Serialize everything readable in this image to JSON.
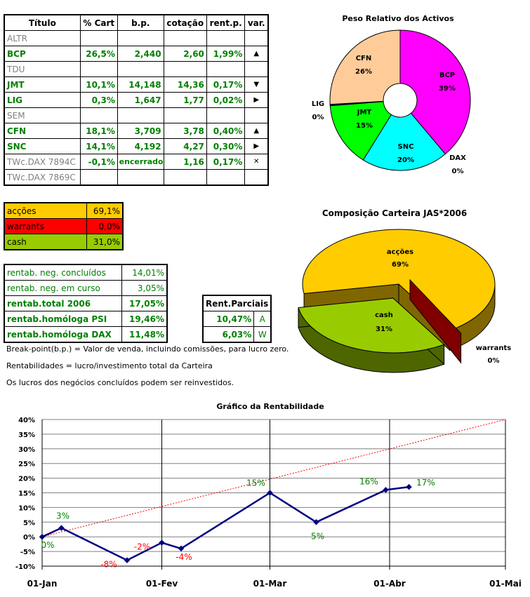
{
  "holdings": {
    "headers": [
      "Título",
      "% Cart",
      "b.p.",
      "cotação",
      "rent.p.",
      "var."
    ],
    "rows": [
      {
        "name": "ALTR",
        "active": false,
        "cart": "",
        "bp": "",
        "cot": "",
        "rent": "",
        "var": ""
      },
      {
        "name": "BCP",
        "active": true,
        "cart": "26,5%",
        "bp": "2,440",
        "cot": "2,60",
        "rent": "1,99%",
        "var": "up"
      },
      {
        "name": "TDU",
        "active": false,
        "cart": "",
        "bp": "",
        "cot": "",
        "rent": "",
        "var": ""
      },
      {
        "name": "JMT",
        "active": true,
        "cart": "10,1%",
        "bp": "14,148",
        "cot": "14,36",
        "rent": "0,17%",
        "var": "down"
      },
      {
        "name": "LIG",
        "active": true,
        "cart": "0,3%",
        "bp": "1,647",
        "cot": "1,77",
        "rent": "0,02%",
        "var": "right"
      },
      {
        "name": "SEM",
        "active": false,
        "cart": "",
        "bp": "",
        "cot": "",
        "rent": "",
        "var": ""
      },
      {
        "name": "CFN",
        "active": true,
        "cart": "18,1%",
        "bp": "3,709",
        "cot": "3,78",
        "rent": "0,40%",
        "var": "up"
      },
      {
        "name": "SNC",
        "active": true,
        "cart": "14,1%",
        "bp": "4,192",
        "cot": "4,27",
        "rent": "0,30%",
        "var": "right"
      },
      {
        "name": "TWc.DAX 7894C",
        "active": false,
        "cart": "-0,1%",
        "bp": "encerrado",
        "cot": "1,16",
        "rent": "0,17%",
        "var": "closed"
      },
      {
        "name": "TWc.DAX 7869C",
        "active": false,
        "cart": "",
        "bp": "",
        "cot": "",
        "rent": "",
        "var": ""
      }
    ],
    "var_icons": {
      "up": "▲",
      "down": "▼",
      "right": "▶",
      "closed": "✕"
    }
  },
  "allocation": [
    {
      "label": "acções",
      "value": "69,1%",
      "color": "#FFCC00"
    },
    {
      "label": "warrants",
      "value": "0,0%",
      "color": "#FF0000"
    },
    {
      "label": "cash",
      "value": "31,0%",
      "color": "#99CC00"
    }
  ],
  "returns": [
    {
      "label": "rentab. neg. concluídos",
      "value": "14,01%",
      "bold": false
    },
    {
      "label": "rentab. neg. em curso",
      "value": "3,05%",
      "bold": false
    },
    {
      "label": "rentab.total 2006",
      "value": "17,05%",
      "bold": true
    },
    {
      "label": "rentab.homóloga PSI",
      "value": "19,46%",
      "bold": true
    },
    {
      "label": "rentab.homóloga DAX",
      "value": "11,48%",
      "bold": true
    }
  ],
  "partial": {
    "title": "Rent.Parciais",
    "rows": [
      {
        "value": "10,47%",
        "code": "A"
      },
      {
        "value": "6,03%",
        "code": "W"
      }
    ]
  },
  "notes": [
    "Break-point(b.p.) = Valor de venda, incluindo comissões, para lucro zero.",
    "Rentabilidades = lucro/investimento total da Carteira",
    "Os lucros dos negócios concluídos podem ser reinvestidos."
  ],
  "chart_data": [
    {
      "type": "pie",
      "variant": "donut",
      "title": "Peso Relativo dos Activos",
      "slices": [
        {
          "label": "BCP",
          "value": 39,
          "text": "39%",
          "color": "#FF00FF"
        },
        {
          "label": "DAX",
          "value": 0,
          "text": "0%",
          "color": "#FFFFFF"
        },
        {
          "label": "SNC",
          "value": 20,
          "text": "20%",
          "color": "#00FFFF"
        },
        {
          "label": "JMT",
          "value": 15,
          "text": "15%",
          "color": "#00FF00"
        },
        {
          "label": "LIG",
          "value": 0.3,
          "text": "0%",
          "color": "#000080"
        },
        {
          "label": "CFN",
          "value": 26,
          "text": "26%",
          "color": "#FFCC99"
        }
      ]
    },
    {
      "type": "pie",
      "variant": "3d-exploded",
      "title": "Composição Carteira JAS*2006",
      "slices": [
        {
          "label": "acções",
          "value": 69,
          "text": "69%",
          "color": "#FFCC00",
          "side": "#806600"
        },
        {
          "label": "warrants",
          "value": 0,
          "text": "0%",
          "color": "#800000",
          "side": "#800000"
        },
        {
          "label": "cash",
          "value": 31,
          "text": "31%",
          "color": "#99CC00",
          "side": "#4D6600"
        }
      ]
    },
    {
      "type": "line",
      "title": "Gráfico da Rentabilidade",
      "xticks": [
        "01-Jan",
        "01-Fev",
        "01-Mar",
        "01-Abr",
        "01-Mai"
      ],
      "xtick_dates": [
        "2006-01-01",
        "2006-02-01",
        "2006-03-01",
        "2006-04-01",
        "2006-05-01"
      ],
      "ylim": [
        -10,
        40
      ],
      "yticks": [
        "-10%",
        "-5%",
        "0%",
        "5%",
        "10%",
        "15%",
        "20%",
        "25%",
        "30%",
        "35%",
        "40%"
      ],
      "grid": true,
      "series": [
        {
          "color": "#000080",
          "points": [
            {
              "x": "2006-01-01",
              "y": 0,
              "label": "0%"
            },
            {
              "x": "2006-01-06",
              "y": 3,
              "label": "3%"
            },
            {
              "x": "2006-01-23",
              "y": -8,
              "label": "-8%"
            },
            {
              "x": "2006-02-01",
              "y": -2,
              "label": "-2%"
            },
            {
              "x": "2006-02-06",
              "y": -4,
              "label": "-4%"
            },
            {
              "x": "2006-03-01",
              "y": 15,
              "label": "15%"
            },
            {
              "x": "2006-03-13",
              "y": 5,
              "label": "5%"
            },
            {
              "x": "2006-03-31",
              "y": 16,
              "label": "16%"
            },
            {
              "x": "2006-04-06",
              "y": 17,
              "label": "17%"
            }
          ]
        },
        {
          "color": "#FF0000",
          "style": "dotted",
          "points": [
            {
              "x": "2006-01-01",
              "y": 0
            },
            {
              "x": "2006-05-01",
              "y": 40
            }
          ]
        }
      ]
    }
  ]
}
